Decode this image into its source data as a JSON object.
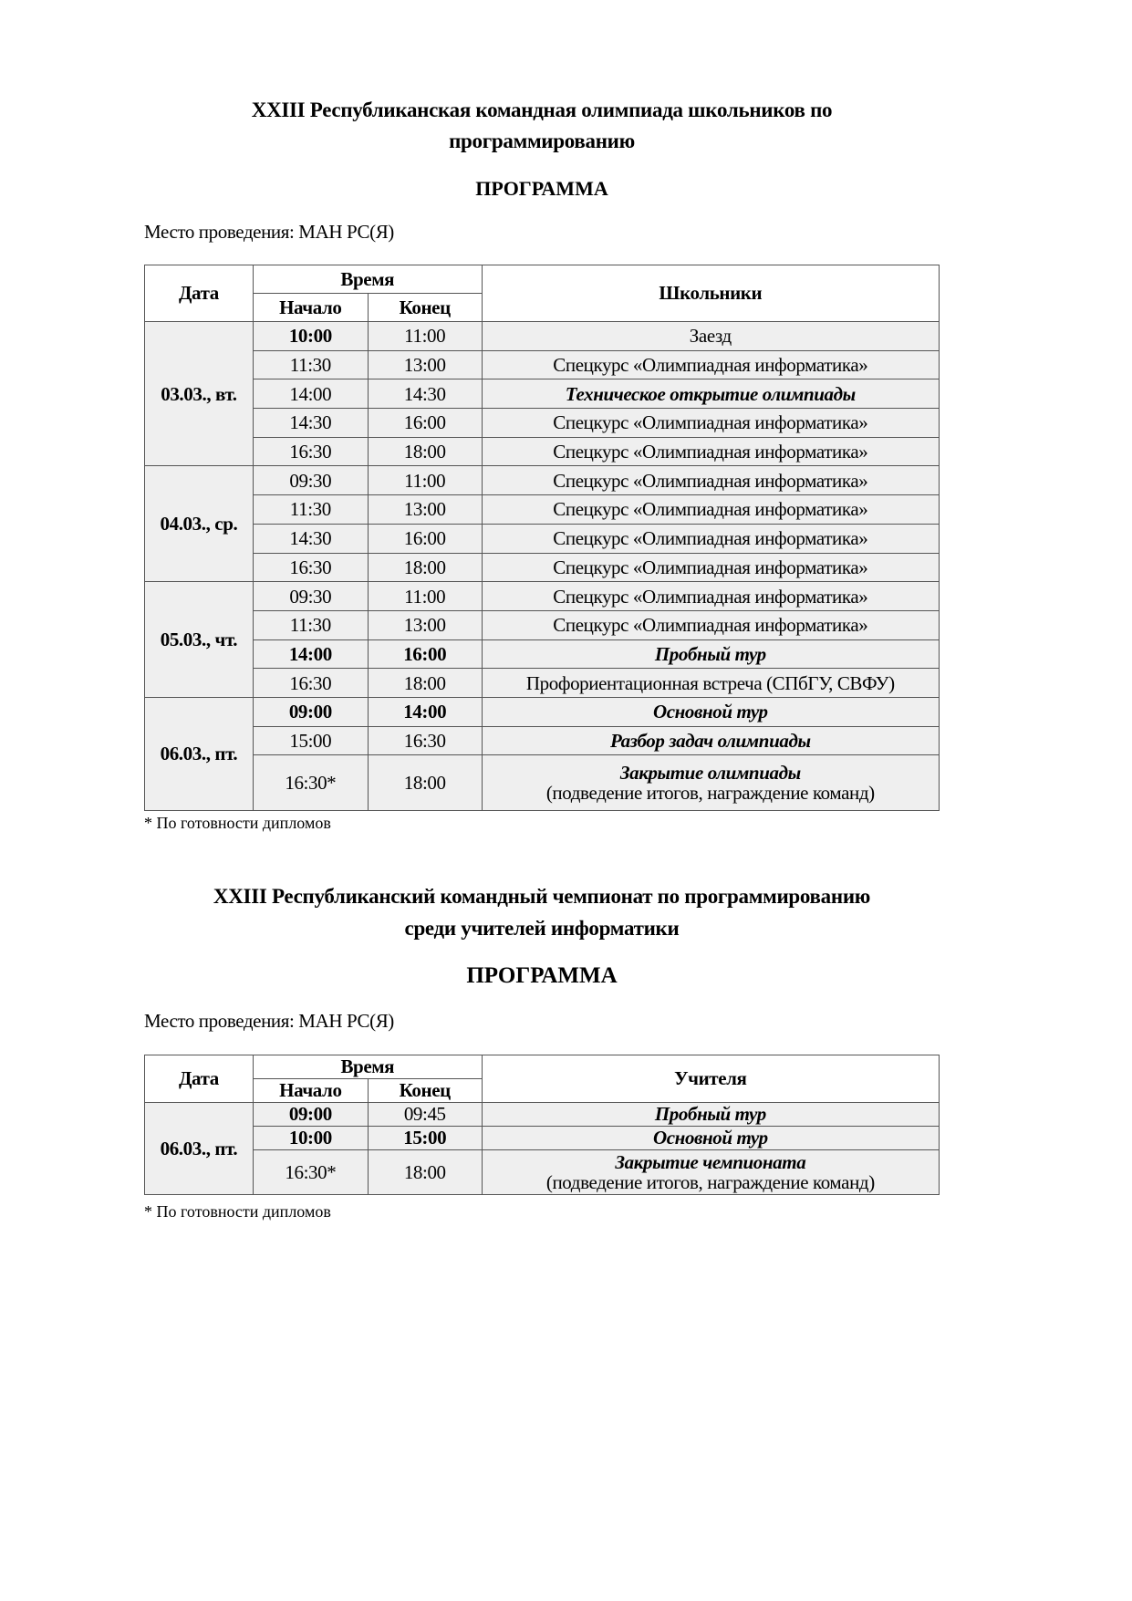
{
  "section1": {
    "title_line1": "XXIII Республиканская командная олимпиада школьников по",
    "title_line2": "программированию",
    "program": "ПРОГРАММА",
    "place": "Место проведения: МАН РС(Я)",
    "headers": {
      "date": "Дата",
      "time": "Время",
      "start": "Начало",
      "end": "Конец",
      "event": "Школьники"
    },
    "groups": [
      {
        "date": "03.03., вт.",
        "rows": [
          {
            "start": "10:00",
            "end": "11:00",
            "event": "Заезд",
            "start_bold": true,
            "end_bold": false,
            "event_style": "normal"
          },
          {
            "start": "11:30",
            "end": "13:00",
            "event": "Спецкурс «Олимпиадная информатика»",
            "start_bold": false,
            "end_bold": false,
            "event_style": "normal"
          },
          {
            "start": "14:00",
            "end": "14:30",
            "event": "Техническое открытие олимпиады",
            "start_bold": false,
            "end_bold": false,
            "event_style": "bold-italic"
          },
          {
            "start": "14:30",
            "end": "16:00",
            "event": "Спецкурс «Олимпиадная информатика»",
            "start_bold": false,
            "end_bold": false,
            "event_style": "normal"
          },
          {
            "start": "16:30",
            "end": "18:00",
            "event": "Спецкурс «Олимпиадная информатика»",
            "start_bold": false,
            "end_bold": false,
            "event_style": "normal"
          }
        ]
      },
      {
        "date": "04.03., ср.",
        "rows": [
          {
            "start": "09:30",
            "end": "11:00",
            "event": "Спецкурс «Олимпиадная информатика»",
            "start_bold": false,
            "end_bold": false,
            "event_style": "normal"
          },
          {
            "start": "11:30",
            "end": "13:00",
            "event": "Спецкурс «Олимпиадная информатика»",
            "start_bold": false,
            "end_bold": false,
            "event_style": "normal"
          },
          {
            "start": "14:30",
            "end": "16:00",
            "event": "Спецкурс «Олимпиадная информатика»",
            "start_bold": false,
            "end_bold": false,
            "event_style": "normal"
          },
          {
            "start": "16:30",
            "end": "18:00",
            "event": "Спецкурс «Олимпиадная информатика»",
            "start_bold": false,
            "end_bold": false,
            "event_style": "normal"
          }
        ]
      },
      {
        "date": "05.03., чт.",
        "rows": [
          {
            "start": "09:30",
            "end": "11:00",
            "event": "Спецкурс «Олимпиадная информатика»",
            "start_bold": false,
            "end_bold": false,
            "event_style": "normal"
          },
          {
            "start": "11:30",
            "end": "13:00",
            "event": "Спецкурс «Олимпиадная информатика»",
            "start_bold": false,
            "end_bold": false,
            "event_style": "normal"
          },
          {
            "start": "14:00",
            "end": "16:00",
            "event": "Пробный тур",
            "start_bold": true,
            "end_bold": true,
            "event_style": "bold-italic"
          },
          {
            "start": "16:30",
            "end": "18:00",
            "event": "Профориентационная встреча (СПбГУ, СВФУ)",
            "start_bold": false,
            "end_bold": false,
            "event_style": "normal"
          }
        ]
      },
      {
        "date": "06.03., пт.",
        "rows": [
          {
            "start": "09:00",
            "end": "14:00",
            "event": "Основной тур",
            "start_bold": true,
            "end_bold": true,
            "event_style": "bold-italic"
          },
          {
            "start": "15:00",
            "end": "16:30",
            "event": "Разбор задач олимпиады",
            "start_bold": false,
            "end_bold": false,
            "event_style": "bold-italic"
          },
          {
            "start": "16:30*",
            "end": "18:00",
            "event": "Закрытие олимпиады",
            "event_sub": "(подведение итогов, награждение команд)",
            "start_bold": false,
            "end_bold": false,
            "event_style": "bold-italic"
          }
        ]
      }
    ],
    "footnote": "* По готовности дипломов"
  },
  "section2": {
    "title_line1": "XXIII Республиканский командный чемпионат по программированию",
    "title_line2": "среди учителей информатики",
    "program": "ПРОГРАММА",
    "place": "Место проведения: МАН РС(Я)",
    "headers": {
      "date": "Дата",
      "time": "Время",
      "start": "Начало",
      "end": "Конец",
      "event": "Учителя"
    },
    "groups": [
      {
        "date": "06.03., пт.",
        "rows": [
          {
            "start": "09:00",
            "end": "09:45",
            "event": "Пробный тур",
            "start_bold": true,
            "end_bold": false,
            "event_style": "bold-italic"
          },
          {
            "start": "10:00",
            "end": "15:00",
            "event": "Основной тур",
            "start_bold": true,
            "end_bold": true,
            "event_style": "bold-italic"
          },
          {
            "start": "16:30*",
            "end": "18:00",
            "event": "Закрытие чемпионата",
            "event_sub": "(подведение итогов, награждение команд)",
            "start_bold": false,
            "end_bold": false,
            "event_style": "bold-italic"
          }
        ]
      }
    ],
    "footnote": "* По готовности дипломов"
  }
}
